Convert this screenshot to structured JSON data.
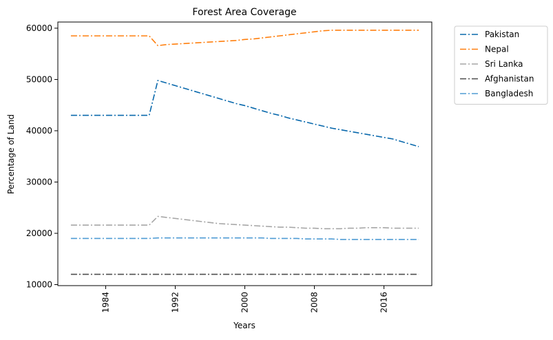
{
  "chart_data": {
    "type": "line",
    "title": "Forest Area Coverage",
    "xlabel": "Years",
    "ylabel": "Percentage of Land",
    "x": [
      1980,
      1981,
      1982,
      1983,
      1984,
      1985,
      1986,
      1987,
      1988,
      1989,
      1990,
      1991,
      1992,
      1993,
      1994,
      1995,
      1996,
      1997,
      1998,
      1999,
      2000,
      2001,
      2002,
      2003,
      2004,
      2005,
      2006,
      2007,
      2008,
      2009,
      2010,
      2011,
      2012,
      2013,
      2014,
      2015,
      2016,
      2017,
      2018,
      2019,
      2020
    ],
    "xlim": [
      1978.5,
      2021.5
    ],
    "ylim": [
      9800,
      61200
    ],
    "xticks": [
      1984,
      1992,
      2000,
      2008,
      2016
    ],
    "yticks": [
      10000,
      20000,
      30000,
      40000,
      50000,
      60000
    ],
    "grid": false,
    "legend_position": "outside-top-right",
    "series": [
      {
        "name": "Pakistan",
        "color": "#0868ac",
        "values": [
          43000,
          43000,
          43000,
          43000,
          43000,
          43000,
          43000,
          43000,
          43000,
          43000,
          49800,
          49300,
          48800,
          48300,
          47800,
          47300,
          46800,
          46300,
          45800,
          45300,
          44900,
          44400,
          43900,
          43400,
          43000,
          42500,
          42100,
          41700,
          41300,
          40900,
          40500,
          40200,
          39900,
          39600,
          39300,
          39000,
          38700,
          38400,
          37900,
          37400,
          36900
        ]
      },
      {
        "name": "Nepal",
        "color": "#ff7f0e",
        "values": [
          58500,
          58500,
          58500,
          58500,
          58500,
          58500,
          58500,
          58500,
          58500,
          58500,
          56600,
          56800,
          56900,
          57000,
          57100,
          57200,
          57300,
          57400,
          57500,
          57600,
          57800,
          57900,
          58100,
          58300,
          58500,
          58700,
          58900,
          59100,
          59300,
          59500,
          59600,
          59600,
          59600,
          59600,
          59600,
          59600,
          59600,
          59600,
          59600,
          59600,
          59600
        ]
      },
      {
        "name": "Sri Lanka",
        "color": "#a6a6a6",
        "values": [
          21600,
          21600,
          21600,
          21600,
          21600,
          21600,
          21600,
          21600,
          21600,
          21600,
          23300,
          23100,
          22900,
          22700,
          22500,
          22300,
          22100,
          21900,
          21800,
          21700,
          21600,
          21500,
          21400,
          21300,
          21200,
          21200,
          21100,
          21000,
          21000,
          20900,
          20900,
          20900,
          21000,
          21000,
          21100,
          21100,
          21100,
          21000,
          21000,
          21000,
          21000
        ]
      },
      {
        "name": "Afghanistan",
        "color": "#4d4d4d",
        "values": [
          12000,
          12000,
          12000,
          12000,
          12000,
          12000,
          12000,
          12000,
          12000,
          12000,
          12000,
          12000,
          12000,
          12000,
          12000,
          12000,
          12000,
          12000,
          12000,
          12000,
          12000,
          12000,
          12000,
          12000,
          12000,
          12000,
          12000,
          12000,
          12000,
          12000,
          12000,
          12000,
          12000,
          12000,
          12000,
          12000,
          12000,
          12000,
          12000,
          12000,
          12000
        ]
      },
      {
        "name": "Bangladesh",
        "color": "#4e9bd4",
        "values": [
          19000,
          19000,
          19000,
          19000,
          19000,
          19000,
          19000,
          19000,
          19000,
          19000,
          19100,
          19100,
          19100,
          19100,
          19100,
          19100,
          19100,
          19100,
          19100,
          19100,
          19100,
          19100,
          19100,
          19000,
          19000,
          19000,
          19000,
          18900,
          18900,
          18900,
          18900,
          18800,
          18800,
          18800,
          18800,
          18800,
          18800,
          18800,
          18800,
          18800,
          18800
        ]
      }
    ]
  }
}
